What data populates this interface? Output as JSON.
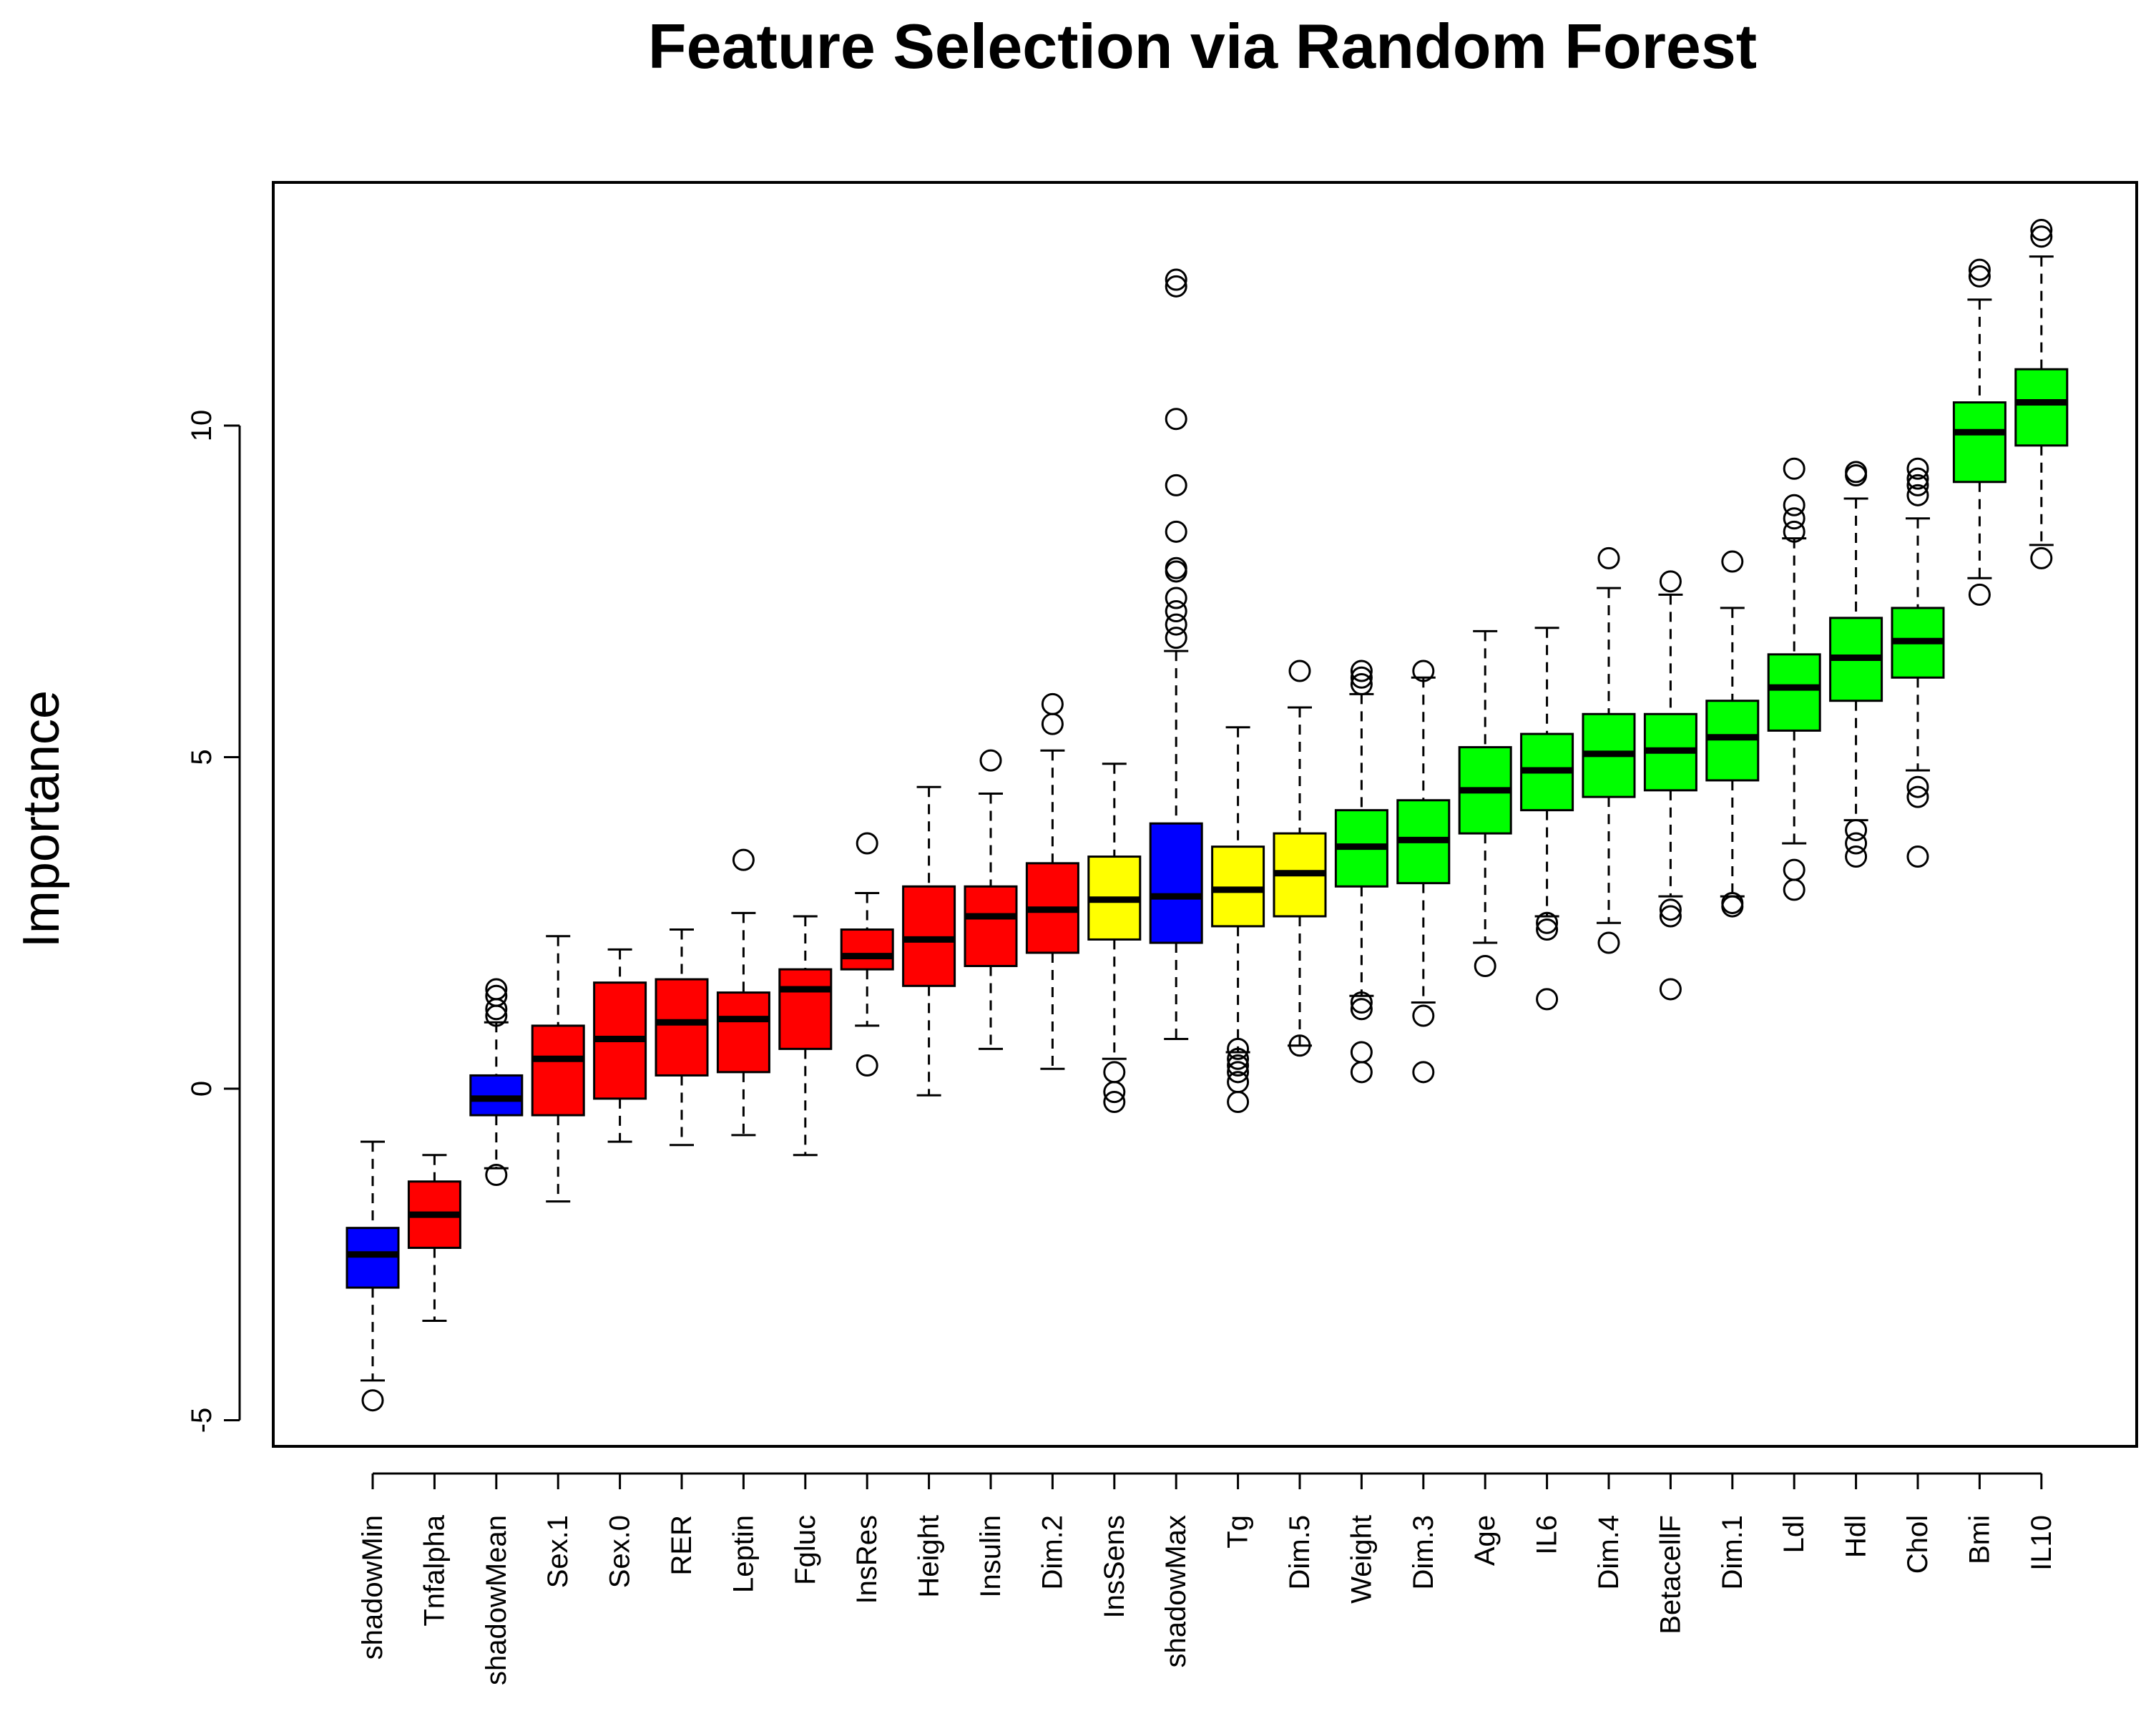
{
  "chart_data": {
    "type": "box",
    "title": "Feature Selection via Random Forest",
    "xlabel": "",
    "ylabel": "Importance",
    "ylim": [
      -5.5,
      13.5
    ],
    "yticks": [
      -5,
      0,
      5,
      10
    ],
    "grid": false,
    "colors": {
      "shadow": "#0000ff",
      "rejected": "#ff0000",
      "tentative": "#ffff00",
      "confirmed": "#00ff00"
    },
    "boxes": [
      {
        "label": "shadowMin",
        "status": "shadow",
        "whisker_low": -4.4,
        "q1": -3.0,
        "median": -2.5,
        "q3": -2.1,
        "whisker_high": -0.8,
        "outliers": [
          -4.7
        ]
      },
      {
        "label": "Tnfalpha",
        "status": "rejected",
        "whisker_low": -3.5,
        "q1": -2.4,
        "median": -1.9,
        "q3": -1.4,
        "whisker_high": -1.0,
        "outliers": []
      },
      {
        "label": "shadowMean",
        "status": "shadow",
        "whisker_low": -1.2,
        "q1": -0.4,
        "median": -0.15,
        "q3": 0.2,
        "whisker_high": 1.0,
        "outliers": [
          -1.3,
          1.1,
          1.2,
          1.4,
          1.5
        ]
      },
      {
        "label": "Sex.1",
        "status": "rejected",
        "whisker_low": -1.7,
        "q1": -0.4,
        "median": 0.45,
        "q3": 0.95,
        "whisker_high": 2.3,
        "outliers": []
      },
      {
        "label": "Sex.0",
        "status": "rejected",
        "whisker_low": -0.8,
        "q1": -0.15,
        "median": 0.75,
        "q3": 1.6,
        "whisker_high": 2.1,
        "outliers": []
      },
      {
        "label": "RER",
        "status": "rejected",
        "whisker_low": -0.85,
        "q1": 0.2,
        "median": 1.0,
        "q3": 1.65,
        "whisker_high": 2.4,
        "outliers": []
      },
      {
        "label": "Leptin",
        "status": "rejected",
        "whisker_low": -0.7,
        "q1": 0.25,
        "median": 1.05,
        "q3": 1.45,
        "whisker_high": 2.65,
        "outliers": [
          3.45
        ]
      },
      {
        "label": "Fgluc",
        "status": "rejected",
        "whisker_low": -1.0,
        "q1": 0.6,
        "median": 1.5,
        "q3": 1.8,
        "whisker_high": 2.6,
        "outliers": []
      },
      {
        "label": "InsRes",
        "status": "rejected",
        "whisker_low": 0.95,
        "q1": 1.8,
        "median": 2.0,
        "q3": 2.4,
        "whisker_high": 2.95,
        "outliers": [
          0.35,
          3.7
        ]
      },
      {
        "label": "Height",
        "status": "rejected",
        "whisker_low": -0.1,
        "q1": 1.55,
        "median": 2.25,
        "q3": 3.05,
        "whisker_high": 4.55,
        "outliers": []
      },
      {
        "label": "Insulin",
        "status": "rejected",
        "whisker_low": 0.6,
        "q1": 1.85,
        "median": 2.6,
        "q3": 3.05,
        "whisker_high": 4.45,
        "outliers": [
          4.95
        ]
      },
      {
        "label": "Dim.2",
        "status": "rejected",
        "whisker_low": 0.3,
        "q1": 2.05,
        "median": 2.7,
        "q3": 3.4,
        "whisker_high": 5.1,
        "outliers": [
          5.5,
          5.8
        ]
      },
      {
        "label": "InsSens",
        "status": "tentative",
        "whisker_low": 0.45,
        "q1": 2.25,
        "median": 2.85,
        "q3": 3.5,
        "whisker_high": 4.9,
        "outliers": [
          -0.2,
          -0.05,
          0.25
        ]
      },
      {
        "label": "shadowMax",
        "status": "shadow",
        "whisker_low": 0.75,
        "q1": 2.2,
        "median": 2.9,
        "q3": 4.0,
        "whisker_high": 6.6,
        "outliers": [
          6.8,
          7.0,
          7.2,
          7.4,
          7.8,
          7.85,
          8.4,
          9.1,
          10.1,
          12.1,
          12.2
        ]
      },
      {
        "label": "Tg",
        "status": "tentative",
        "whisker_low": 0.55,
        "q1": 2.45,
        "median": 3.0,
        "q3": 3.65,
        "whisker_high": 5.45,
        "outliers": [
          -0.2,
          0.1,
          0.25,
          0.35,
          0.45,
          0.6
        ]
      },
      {
        "label": "Dim.5",
        "status": "tentative",
        "whisker_low": 0.65,
        "q1": 2.6,
        "median": 3.25,
        "q3": 3.85,
        "whisker_high": 5.75,
        "outliers": [
          0.65,
          6.3
        ]
      },
      {
        "label": "Weight",
        "status": "confirmed",
        "whisker_low": 1.4,
        "q1": 3.05,
        "median": 3.65,
        "q3": 4.2,
        "whisker_high": 5.95,
        "outliers": [
          0.25,
          0.55,
          1.2,
          1.3,
          6.1,
          6.2,
          6.3
        ]
      },
      {
        "label": "Dim.3",
        "status": "confirmed",
        "whisker_low": 1.3,
        "q1": 3.1,
        "median": 3.75,
        "q3": 4.35,
        "whisker_high": 6.2,
        "outliers": [
          0.25,
          1.1,
          6.3
        ]
      },
      {
        "label": "Age",
        "status": "confirmed",
        "whisker_low": 2.2,
        "q1": 3.85,
        "median": 4.5,
        "q3": 5.15,
        "whisker_high": 6.9,
        "outliers": [
          1.85
        ]
      },
      {
        "label": "IL6",
        "status": "confirmed",
        "whisker_low": 2.6,
        "q1": 4.2,
        "median": 4.8,
        "q3": 5.35,
        "whisker_high": 6.95,
        "outliers": [
          1.35,
          2.4,
          2.5
        ]
      },
      {
        "label": "Dim.4",
        "status": "confirmed",
        "whisker_low": 2.5,
        "q1": 4.4,
        "median": 5.05,
        "q3": 5.65,
        "whisker_high": 7.55,
        "outliers": [
          2.2,
          8.0
        ]
      },
      {
        "label": "BetacellF",
        "status": "confirmed",
        "whisker_low": 2.9,
        "q1": 4.5,
        "median": 5.1,
        "q3": 5.65,
        "whisker_high": 7.45,
        "outliers": [
          1.5,
          2.6,
          2.7,
          7.65
        ]
      },
      {
        "label": "Dim.1",
        "status": "confirmed",
        "whisker_low": 2.9,
        "q1": 4.65,
        "median": 5.3,
        "q3": 5.85,
        "whisker_high": 7.25,
        "outliers": [
          2.75,
          2.8,
          7.95
        ]
      },
      {
        "label": "Ldl",
        "status": "confirmed",
        "whisker_low": 3.7,
        "q1": 5.4,
        "median": 6.05,
        "q3": 6.55,
        "whisker_high": 8.3,
        "outliers": [
          3.0,
          3.3,
          8.4,
          8.6,
          8.8,
          9.35
        ]
      },
      {
        "label": "Hdl",
        "status": "confirmed",
        "whisker_low": 4.05,
        "q1": 5.85,
        "median": 6.5,
        "q3": 7.1,
        "whisker_high": 8.9,
        "outliers": [
          3.5,
          3.7,
          3.9,
          9.25,
          9.3
        ]
      },
      {
        "label": "Chol",
        "status": "confirmed",
        "whisker_low": 4.8,
        "q1": 6.2,
        "median": 6.75,
        "q3": 7.25,
        "whisker_high": 8.6,
        "outliers": [
          3.5,
          4.4,
          4.55,
          8.95,
          9.1,
          9.2,
          9.35
        ]
      },
      {
        "label": "Bmi",
        "status": "confirmed",
        "whisker_low": 7.7,
        "q1": 9.15,
        "median": 9.9,
        "q3": 10.35,
        "whisker_high": 11.9,
        "outliers": [
          7.45,
          12.25,
          12.35
        ]
      },
      {
        "label": "IL10",
        "status": "confirmed",
        "whisker_low": 8.2,
        "q1": 9.7,
        "median": 10.35,
        "q3": 10.85,
        "whisker_high": 12.55,
        "outliers": [
          8.0,
          12.85,
          12.95
        ]
      }
    ]
  }
}
